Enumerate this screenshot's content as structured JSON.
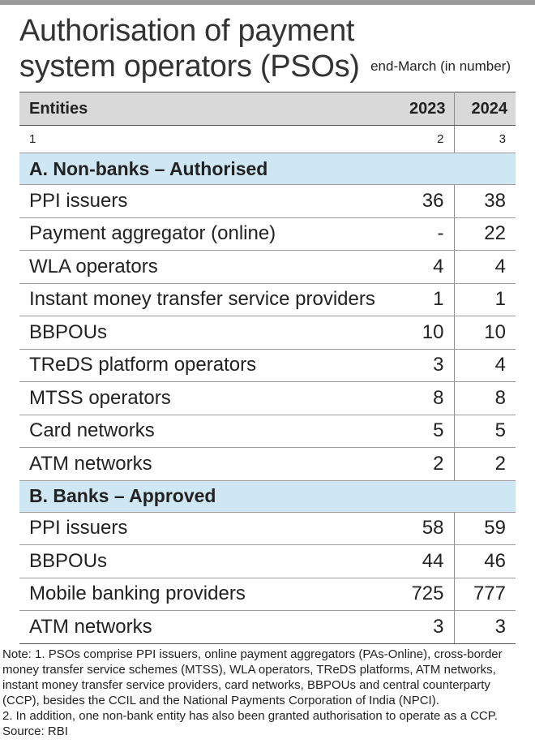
{
  "title": "Authorisation of payment system operators (PSOs)",
  "unit_note": "end-March (in number)",
  "chart_data": {
    "type": "table",
    "columns": [
      "Entities",
      "2023",
      "2024"
    ],
    "column_numbers": [
      "1",
      "2",
      "3"
    ],
    "sections": [
      {
        "heading": "A. Non-banks – Authorised",
        "rows": [
          {
            "label": "PPI issuers",
            "y2023": "36",
            "y2024": "38"
          },
          {
            "label": "Payment aggregator (online)",
            "y2023": "-",
            "y2024": "22"
          },
          {
            "label": "WLA operators",
            "y2023": "4",
            "y2024": "4"
          },
          {
            "label": "Instant money transfer service providers",
            "y2023": "1",
            "y2024": "1"
          },
          {
            "label": "BBPOUs",
            "y2023": "10",
            "y2024": "10"
          },
          {
            "label": "TReDS platform operators",
            "y2023": "3",
            "y2024": "4"
          },
          {
            "label": "MTSS operators",
            "y2023": "8",
            "y2024": "8"
          },
          {
            "label": "Card networks",
            "y2023": "5",
            "y2024": "5"
          },
          {
            "label": "ATM networks",
            "y2023": "2",
            "y2024": "2"
          }
        ]
      },
      {
        "heading": "B. Banks – Approved",
        "rows": [
          {
            "label": "PPI issuers",
            "y2023": "58",
            "y2024": "59"
          },
          {
            "label": "BBPOUs",
            "y2023": "44",
            "y2024": "46"
          },
          {
            "label": "Mobile banking providers",
            "y2023": "725",
            "y2024": "777"
          },
          {
            "label": "ATM networks",
            "y2023": "3",
            "y2024": "3"
          }
        ]
      }
    ]
  },
  "notes": [
    "Note: 1. PSOs comprise PPI issuers, online payment aggregators (PAs-Online), cross-border",
    "money transfer service schemes (MTSS), WLA operators, TReDS platforms, ATM networks,",
    "instant money transfer service providers, card networks, BBPOUs and central counterparty",
    "(CCP), besides the CCIL and the National Payments Corporation of India (NPCI).",
    "2. In addition, one non-bank entity has also been granted authorisation to operate as a CCP."
  ],
  "source": "Source: RBI",
  "colors": {
    "header_bg": "#d9d9d9",
    "section_bg": "#cfe6f3",
    "top_bar": "#9a9a9a"
  }
}
